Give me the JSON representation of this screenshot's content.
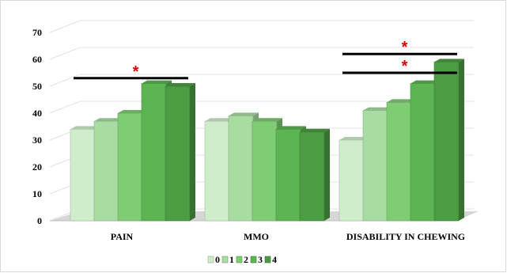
{
  "chart_data": {
    "type": "bar",
    "categories": [
      "PAIN",
      "MMO",
      "DISABILITY IN CHEWING"
    ],
    "series": [
      {
        "name": "0",
        "color": "#cfeccb",
        "values": [
          34,
          37,
          30
        ]
      },
      {
        "name": "1",
        "color": "#a8dca2",
        "values": [
          37,
          39,
          41
        ]
      },
      {
        "name": "2",
        "color": "#7fcc74",
        "values": [
          40,
          37,
          44
        ]
      },
      {
        "name": "3",
        "color": "#5cb452",
        "values": [
          51,
          34,
          51
        ]
      },
      {
        "name": "4",
        "color": "#4c9c44",
        "values": [
          50,
          33,
          59
        ]
      }
    ],
    "ylim": [
      0,
      70
    ],
    "yticks": [
      "0",
      "10",
      "20",
      "30",
      "40",
      "50",
      "60",
      "70"
    ],
    "grid": true,
    "legend_position": "bottom",
    "annotations": [
      {
        "category": "PAIN",
        "from_series": "0",
        "to_series": "4",
        "level": 53,
        "label": "*"
      },
      {
        "category": "DISABILITY IN CHEWING",
        "from_series": "0",
        "to_series": "4",
        "level": 55,
        "label": "*"
      },
      {
        "category": "DISABILITY IN CHEWING",
        "from_series": "0",
        "to_series": "4",
        "level": 62,
        "label": "*"
      }
    ]
  }
}
